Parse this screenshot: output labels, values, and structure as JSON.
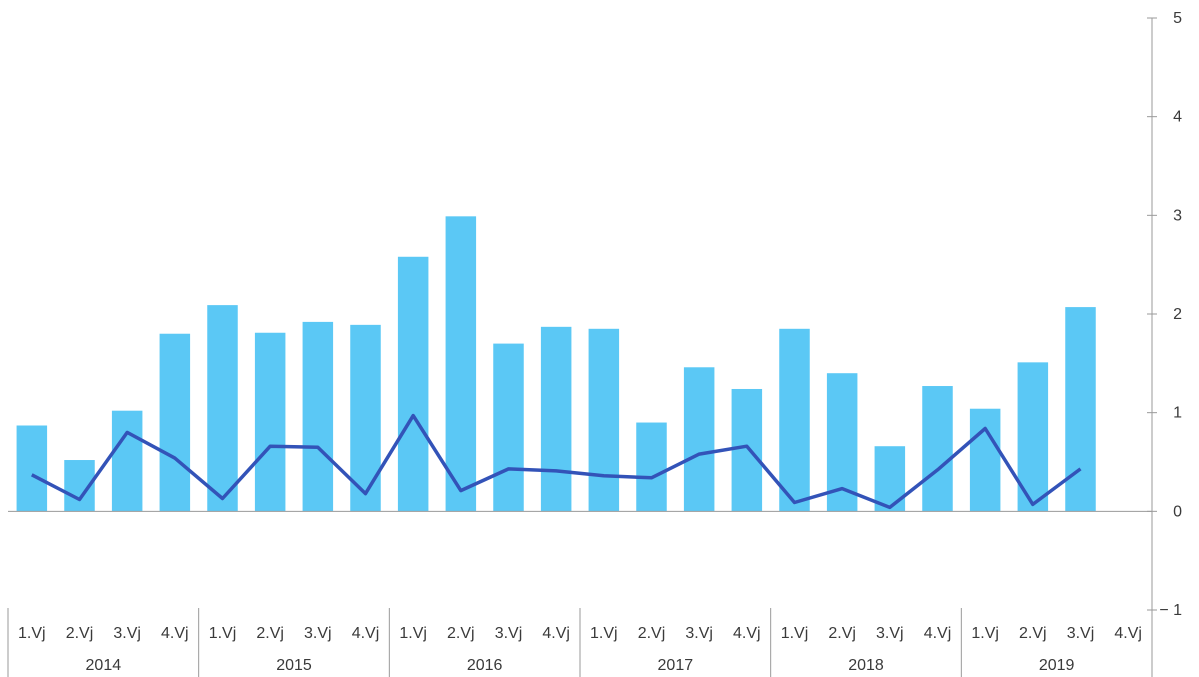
{
  "chart_data": {
    "type": "bar",
    "categories": [
      "1.Vj",
      "2.Vj",
      "3.Vj",
      "4.Vj",
      "1.Vj",
      "2.Vj",
      "3.Vj",
      "4.Vj",
      "1.Vj",
      "2.Vj",
      "3.Vj",
      "4.Vj",
      "1.Vj",
      "2.Vj",
      "3.Vj",
      "4.Vj",
      "1.Vj",
      "2.Vj",
      "3.Vj",
      "4.Vj",
      "1.Vj",
      "2.Vj",
      "3.Vj",
      "4.Vj"
    ],
    "years": [
      "2014",
      "2015",
      "2016",
      "2017",
      "2018",
      "2019"
    ],
    "series": [
      {
        "type": "bar",
        "color": "#5bc8f5",
        "values": [
          0.87,
          0.52,
          1.02,
          1.8,
          2.09,
          1.81,
          1.92,
          1.89,
          2.58,
          2.99,
          1.7,
          1.87,
          1.85,
          0.9,
          1.46,
          1.24,
          1.85,
          1.4,
          0.66,
          1.27,
          1.04,
          1.51,
          2.07,
          null
        ]
      },
      {
        "type": "line",
        "color": "#3353b8",
        "values": [
          0.37,
          0.12,
          0.8,
          0.54,
          0.13,
          0.66,
          0.65,
          0.18,
          0.97,
          0.21,
          0.43,
          0.41,
          0.36,
          0.34,
          0.58,
          0.66,
          0.09,
          0.23,
          0.04,
          0.42,
          0.84,
          0.07,
          0.43,
          null
        ]
      }
    ],
    "ylim": [
      -1,
      5
    ],
    "yticks": [
      -1,
      0,
      1,
      2,
      3,
      4,
      5
    ],
    "ytick_labels": [
      "− 1",
      "0",
      "1",
      "2",
      "3",
      "4",
      "5"
    ],
    "y_axis_position": "right",
    "grid": false,
    "legend": "none"
  }
}
